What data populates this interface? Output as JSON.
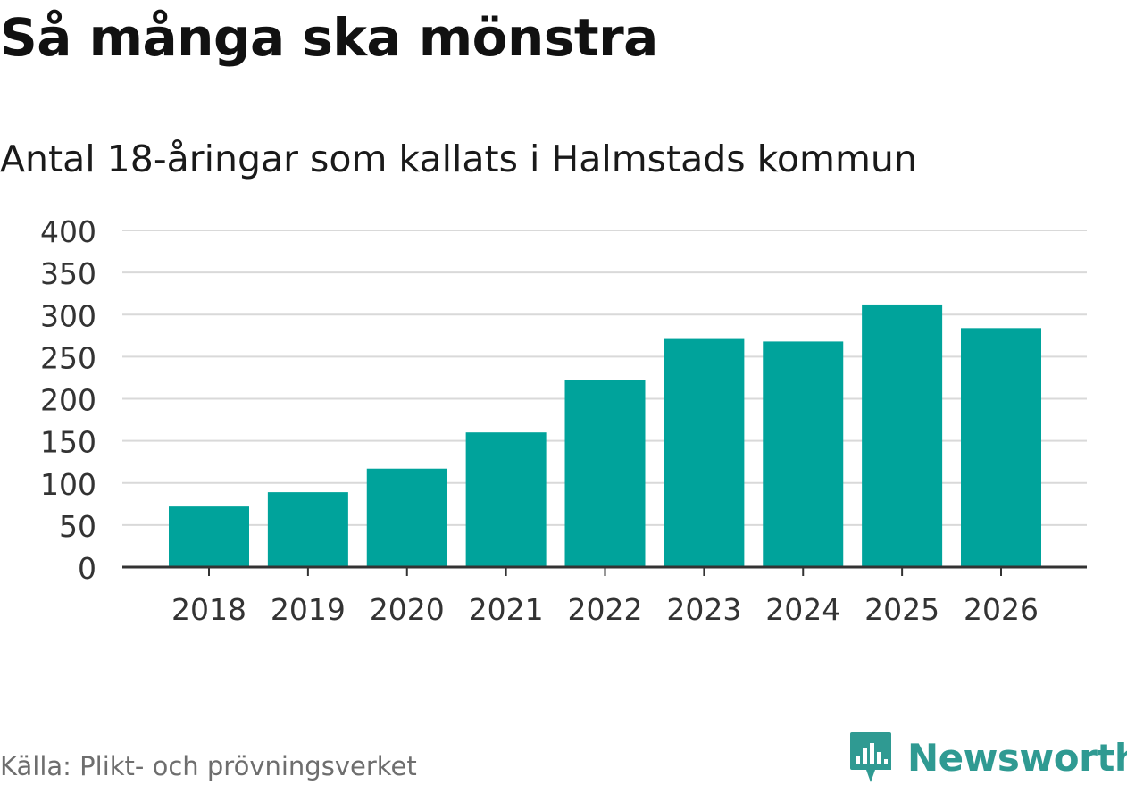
{
  "header": {
    "title": "Så många ska mönstra",
    "subtitle": "Antal 18-åringar som kallats i Halmstads kommun"
  },
  "footer": {
    "source": "Källa: Plikt- och prövningsverket",
    "brand": "Newsworthy",
    "brand_icon": "bar-chart-badge-icon"
  },
  "colors": {
    "bar": "#00a39b",
    "grid": "#d9d9d9",
    "axis": "#333333",
    "brand": "#2f9a92"
  },
  "chart_data": {
    "type": "bar",
    "title": "Så många ska mönstra",
    "subtitle": "Antal 18-åringar som kallats i Halmstads kommun",
    "categories": [
      "2018",
      "2019",
      "2020",
      "2021",
      "2022",
      "2023",
      "2024",
      "2025",
      "2026"
    ],
    "values": [
      72,
      89,
      117,
      160,
      222,
      271,
      268,
      312,
      284
    ],
    "xlabel": "",
    "ylabel": "",
    "ylim": [
      0,
      400
    ],
    "yticks": [
      0,
      50,
      100,
      150,
      200,
      250,
      300,
      350,
      400
    ],
    "grid": true,
    "legend": "none"
  }
}
